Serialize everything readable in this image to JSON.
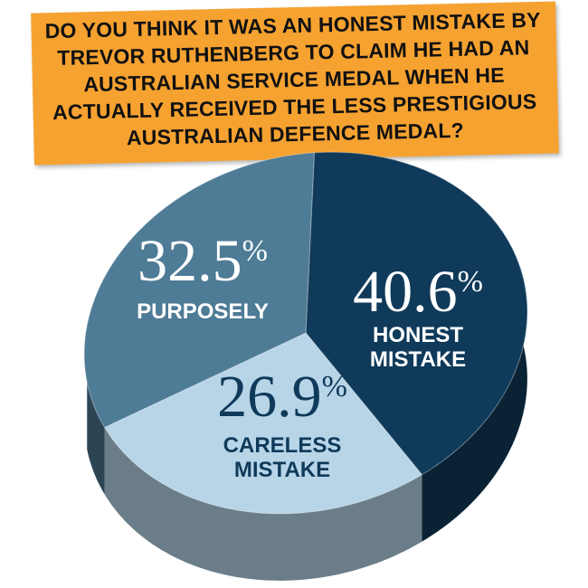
{
  "question": "DO YOU THINK IT WAS AN HONEST MISTAKE BY TREVOR RUTHENBERG TO CLAIM HE HAD AN AUSTRALIAN SERVICE MEDAL WHEN HE ACTUALLY RECEIVED THE LESS PRESTIGIOUS AUSTRALIAN DEFENCE MEDAL?",
  "chart_data": {
    "type": "pie",
    "title": "DO YOU THINK IT WAS AN HONEST MISTAKE BY TREVOR RUTHENBERG TO CLAIM HE HAD AN AUSTRALIAN SERVICE MEDAL WHEN HE ACTUALLY RECEIVED THE LESS PRESTIGIOUS AUSTRALIAN DEFENCE MEDAL?",
    "style": "3d",
    "slices": [
      {
        "label": "HONEST MISTAKE",
        "value": 40.6,
        "value_text": "40.6",
        "color": "#0f3a5a",
        "side_color": "#0a2334"
      },
      {
        "label": "CARELESS MISTAKE",
        "value": 26.9,
        "value_text": "26.9",
        "color": "#b8d5e8",
        "side_color": "#6a7d88"
      },
      {
        "label": "PURPOSELY",
        "value": 32.5,
        "value_text": "32.5",
        "color": "#4e7b96",
        "side_color": "#2c4555"
      }
    ],
    "percent_sign": "%",
    "label_color_dark": "#0f3a5a",
    "label_color_light": "#ffffff"
  }
}
